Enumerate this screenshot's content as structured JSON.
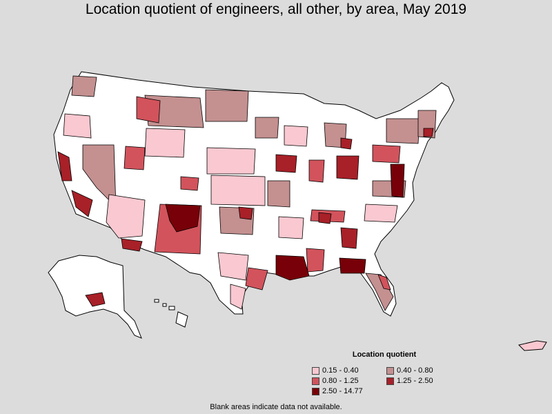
{
  "title": "Location quotient of engineers, all other, by area, May 2019",
  "legend": {
    "title": "Location quotient",
    "items": [
      {
        "label": "0.15 - 0.40",
        "color": "#f9c8d0"
      },
      {
        "label": "0.40 - 0.80",
        "color": "#c49090"
      },
      {
        "label": "0.80 - 1.25",
        "color": "#d2535c"
      },
      {
        "label": "1.25 - 2.50",
        "color": "#a82028"
      },
      {
        "label": "2.50 - 14.77",
        "color": "#780008"
      }
    ]
  },
  "footnote": "Blank areas indicate data not available.",
  "colors": {
    "background": "#dcdcdc",
    "no_data": "#ffffff",
    "border": "#000000"
  }
}
